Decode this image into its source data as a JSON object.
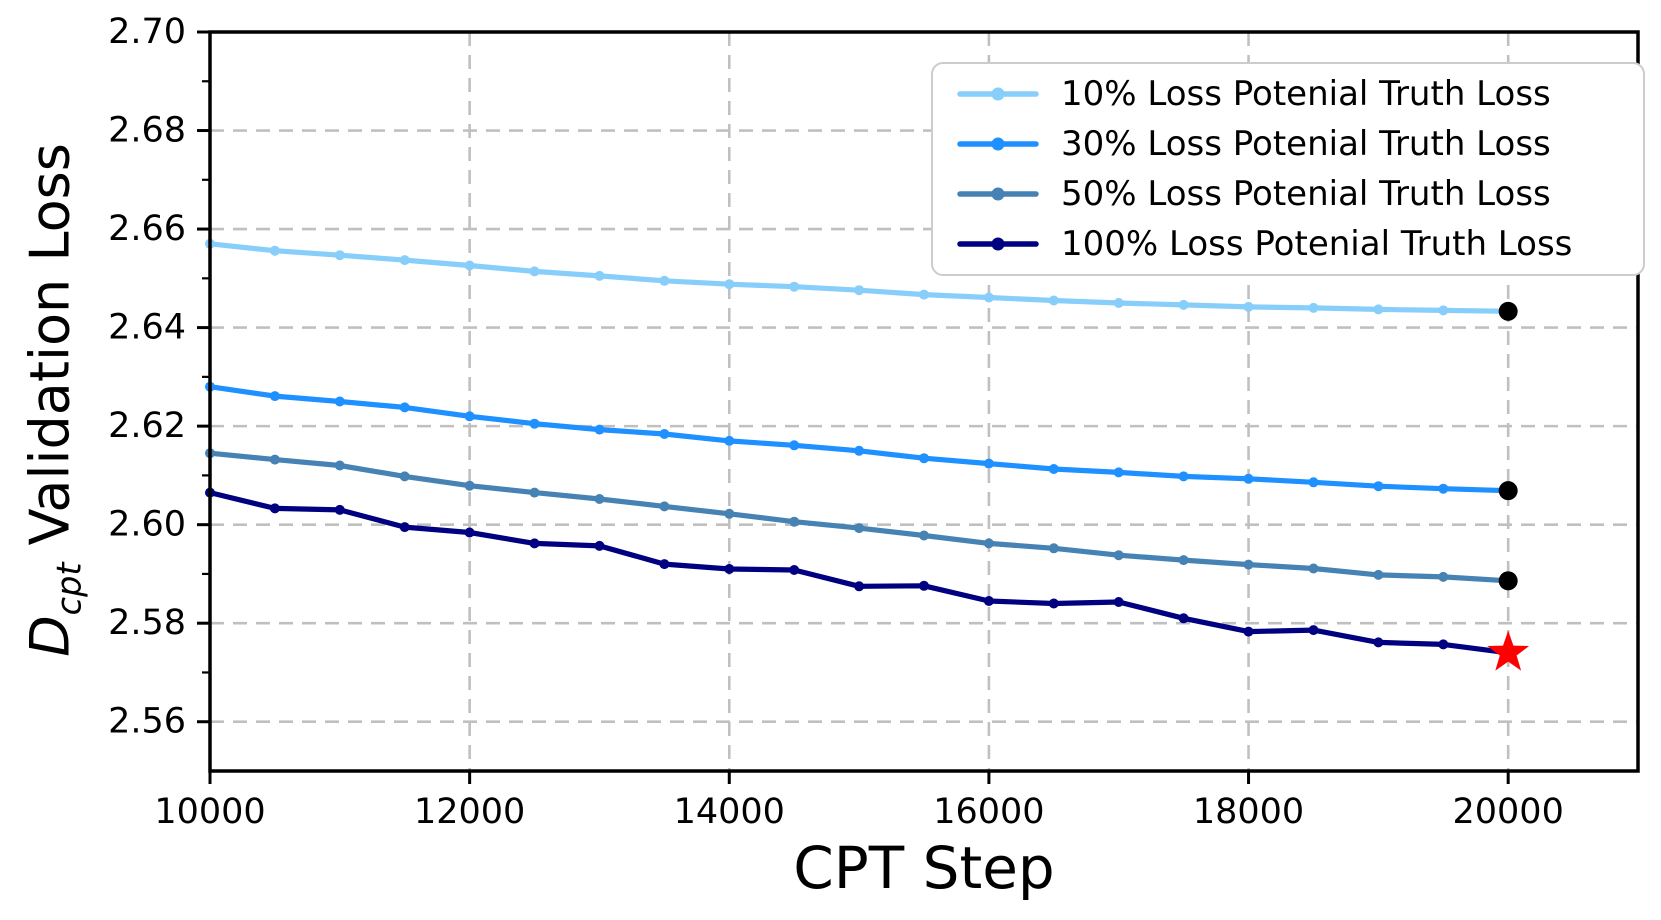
{
  "chart_data": {
    "type": "line",
    "title": "",
    "xlabel": "CPT Step",
    "ylabel": "D_cpt Validation Loss",
    "ylabel_parts": {
      "d": "D",
      "sub": "cpt",
      "rest": " Validation Loss"
    },
    "xlim": [
      10000,
      21000
    ],
    "ylim": [
      2.55,
      2.7
    ],
    "x_ticks": [
      10000,
      12000,
      14000,
      16000,
      18000,
      20000
    ],
    "x_tick_labels": [
      "10000",
      "12000",
      "14000",
      "16000",
      "18000",
      "20000"
    ],
    "y_ticks": [
      2.56,
      2.58,
      2.6,
      2.62,
      2.64,
      2.66,
      2.68,
      2.7
    ],
    "y_tick_labels": [
      "2.56",
      "2.58",
      "2.60",
      "2.62",
      "2.64",
      "2.66",
      "2.68",
      "2.70"
    ],
    "y_minor_ticks": [
      2.57,
      2.59,
      2.61,
      2.63,
      2.65,
      2.67,
      2.69
    ],
    "grid": true,
    "grid_color": "#c0c0c0",
    "legend_position": "upper right",
    "x": [
      10000,
      10500,
      11000,
      11500,
      12000,
      12500,
      13000,
      13500,
      14000,
      14500,
      15000,
      15500,
      16000,
      16500,
      17000,
      17500,
      18000,
      18500,
      19000,
      19500,
      20000
    ],
    "series": [
      {
        "name": "10% Loss Potenial Truth Loss",
        "color": "#87CEFA",
        "end_marker": "black-dot",
        "values": [
          2.657,
          2.6556,
          2.6547,
          2.6537,
          2.6526,
          2.6514,
          2.6505,
          2.6495,
          2.6488,
          2.6483,
          2.6476,
          2.6467,
          2.6461,
          2.6455,
          2.645,
          2.6446,
          2.6442,
          2.644,
          2.6437,
          2.6435,
          2.6433
        ]
      },
      {
        "name": "30% Loss Potenial Truth Loss",
        "color": "#1E90FF",
        "end_marker": "black-dot",
        "values": [
          2.628,
          2.6261,
          2.625,
          2.6238,
          2.622,
          2.6205,
          2.6193,
          2.6184,
          2.617,
          2.6161,
          2.615,
          2.6135,
          2.6124,
          2.6113,
          2.6106,
          2.6098,
          2.6093,
          2.6086,
          2.6078,
          2.6073,
          2.6069
        ]
      },
      {
        "name": "50% Loss Potenial Truth Loss",
        "color": "#4682B4",
        "end_marker": "black-dot",
        "values": [
          2.6145,
          2.6132,
          2.612,
          2.6098,
          2.6079,
          2.6065,
          2.6052,
          2.6037,
          2.6022,
          2.6006,
          2.5993,
          2.5978,
          2.5962,
          2.5952,
          2.5938,
          2.5928,
          2.5919,
          2.5911,
          2.5898,
          2.5894,
          2.5886
        ]
      },
      {
        "name": "100% Loss Potenial Truth Loss",
        "color": "#000080",
        "end_marker": "red-star",
        "values": [
          2.6065,
          2.6033,
          2.603,
          2.5995,
          2.5984,
          2.5962,
          2.5957,
          2.592,
          2.591,
          2.5908,
          2.5875,
          2.5876,
          2.5845,
          2.584,
          2.5843,
          2.581,
          2.5783,
          2.5786,
          2.5761,
          2.5757,
          2.574
        ]
      }
    ],
    "end_marker_colors": {
      "black-dot": "#000000",
      "red-star": "#FF0000"
    }
  }
}
